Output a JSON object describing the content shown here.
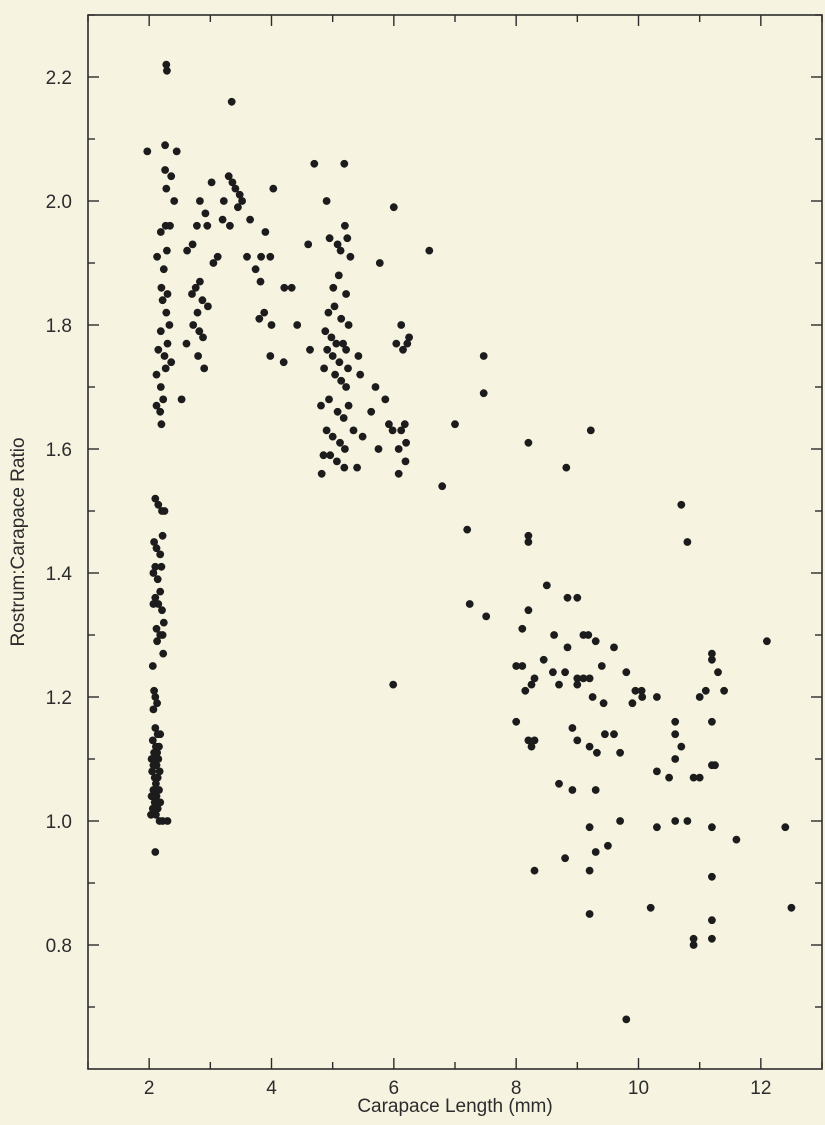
{
  "chart_data": {
    "type": "scatter",
    "title": "",
    "xlabel": "Carapace Length (mm)",
    "ylabel": "Rostrum:Carapace Ratio",
    "xlim": [
      1.0,
      13.0
    ],
    "ylim": [
      0.6,
      2.3
    ],
    "xticks": [
      2,
      4,
      6,
      8,
      10,
      12
    ],
    "xtick_labels": [
      "2",
      "4",
      "6",
      "8",
      "10",
      "12"
    ],
    "yticks": [
      0.8,
      1.0,
      1.2,
      1.4,
      1.6,
      1.8,
      2.0,
      2.2
    ],
    "ytick_labels": [
      "0.8",
      "1.0",
      "1.2",
      "1.4",
      "1.6",
      "1.8",
      "2.0",
      "2.2"
    ],
    "minor_ticks": true,
    "grid": false,
    "legend": "none",
    "colors": {
      "background": "#f7f3e1",
      "axis": "#2c2c2c",
      "points": "#1c1c1c"
    },
    "series": [
      {
        "points": [
          [
            2.28,
            2.22
          ],
          [
            2.29,
            2.21
          ],
          [
            3.35,
            2.16
          ],
          [
            1.97,
            2.08
          ],
          [
            2.26,
            2.09
          ],
          [
            2.45,
            2.08
          ],
          [
            2.26,
            2.05
          ],
          [
            2.36,
            2.04
          ],
          [
            2.28,
            2.02
          ],
          [
            2.41,
            2.0
          ],
          [
            2.19,
            1.95
          ],
          [
            2.27,
            1.96
          ],
          [
            2.34,
            1.96
          ],
          [
            2.13,
            1.91
          ],
          [
            2.29,
            1.92
          ],
          [
            2.24,
            1.89
          ],
          [
            2.2,
            1.86
          ],
          [
            2.3,
            1.85
          ],
          [
            2.22,
            1.84
          ],
          [
            2.28,
            1.82
          ],
          [
            2.33,
            1.8
          ],
          [
            2.19,
            1.79
          ],
          [
            2.3,
            1.77
          ],
          [
            2.15,
            1.76
          ],
          [
            2.36,
            1.74
          ],
          [
            2.25,
            1.75
          ],
          [
            2.27,
            1.73
          ],
          [
            2.12,
            1.72
          ],
          [
            2.19,
            1.7
          ],
          [
            2.23,
            1.68
          ],
          [
            2.12,
            1.67
          ],
          [
            2.18,
            1.66
          ],
          [
            2.53,
            1.68
          ],
          [
            2.2,
            1.64
          ],
          [
            2.62,
            1.92
          ],
          [
            2.71,
            1.93
          ],
          [
            2.78,
            1.96
          ],
          [
            2.83,
            2.0
          ],
          [
            2.92,
            1.98
          ],
          [
            2.95,
            1.96
          ],
          [
            3.02,
            2.03
          ],
          [
            2.7,
            1.85
          ],
          [
            2.76,
            1.86
          ],
          [
            2.83,
            1.87
          ],
          [
            2.87,
            1.84
          ],
          [
            2.79,
            1.82
          ],
          [
            2.72,
            1.8
          ],
          [
            2.82,
            1.79
          ],
          [
            2.88,
            1.78
          ],
          [
            2.61,
            1.77
          ],
          [
            2.8,
            1.75
          ],
          [
            2.9,
            1.73
          ],
          [
            2.96,
            1.83
          ],
          [
            3.05,
            1.9
          ],
          [
            3.12,
            1.91
          ],
          [
            3.2,
            1.97
          ],
          [
            3.22,
            2.0
          ],
          [
            3.3,
            2.04
          ],
          [
            3.36,
            2.03
          ],
          [
            3.41,
            2.02
          ],
          [
            3.48,
            2.01
          ],
          [
            3.32,
            1.96
          ],
          [
            3.45,
            1.99
          ],
          [
            3.52,
            2.0
          ],
          [
            3.65,
            1.97
          ],
          [
            3.6,
            1.91
          ],
          [
            3.82,
            1.87
          ],
          [
            3.83,
            1.91
          ],
          [
            3.9,
            1.95
          ],
          [
            3.74,
            1.89
          ],
          [
            3.8,
            1.81
          ],
          [
            3.88,
            1.82
          ],
          [
            4.03,
            2.02
          ],
          [
            3.98,
            1.91
          ],
          [
            4.0,
            1.8
          ],
          [
            4.21,
            1.86
          ],
          [
            4.33,
            1.86
          ],
          [
            3.98,
            1.75
          ],
          [
            4.2,
            1.74
          ],
          [
            4.42,
            1.8
          ],
          [
            4.6,
            1.93
          ],
          [
            4.63,
            1.76
          ],
          [
            4.7,
            2.06
          ],
          [
            4.9,
            2.0
          ],
          [
            4.95,
            1.94
          ],
          [
            5.08,
            1.93
          ],
          [
            5.13,
            1.92
          ],
          [
            5.2,
            1.96
          ],
          [
            5.24,
            1.94
          ],
          [
            5.01,
            1.86
          ],
          [
            5.1,
            1.88
          ],
          [
            5.22,
            1.85
          ],
          [
            5.29,
            1.91
          ],
          [
            5.19,
            2.06
          ],
          [
            4.93,
            1.82
          ],
          [
            5.03,
            1.83
          ],
          [
            5.14,
            1.81
          ],
          [
            5.26,
            1.8
          ],
          [
            4.88,
            1.79
          ],
          [
            4.98,
            1.78
          ],
          [
            5.06,
            1.77
          ],
          [
            5.17,
            1.77
          ],
          [
            5.22,
            1.76
          ],
          [
            4.91,
            1.76
          ],
          [
            5.0,
            1.75
          ],
          [
            5.11,
            1.74
          ],
          [
            5.25,
            1.73
          ],
          [
            4.86,
            1.73
          ],
          [
            5.04,
            1.72
          ],
          [
            5.14,
            1.71
          ],
          [
            5.22,
            1.7
          ],
          [
            4.94,
            1.68
          ],
          [
            5.08,
            1.66
          ],
          [
            5.18,
            1.65
          ],
          [
            5.26,
            1.67
          ],
          [
            4.81,
            1.67
          ],
          [
            4.9,
            1.63
          ],
          [
            5.0,
            1.62
          ],
          [
            5.12,
            1.61
          ],
          [
            5.2,
            1.6
          ],
          [
            4.85,
            1.59
          ],
          [
            4.96,
            1.59
          ],
          [
            5.07,
            1.58
          ],
          [
            5.19,
            1.57
          ],
          [
            4.82,
            1.56
          ],
          [
            5.34,
            1.63
          ],
          [
            5.42,
            1.75
          ],
          [
            5.45,
            1.72
          ],
          [
            5.4,
            1.57
          ],
          [
            5.49,
            1.62
          ],
          [
            5.63,
            1.66
          ],
          [
            5.7,
            1.7
          ],
          [
            5.77,
            1.9
          ],
          [
            5.75,
            1.6
          ],
          [
            5.86,
            1.68
          ],
          [
            5.92,
            1.64
          ],
          [
            5.98,
            1.63
          ],
          [
            6.0,
            1.99
          ],
          [
            6.04,
            1.77
          ],
          [
            6.12,
            1.8
          ],
          [
            6.15,
            1.76
          ],
          [
            6.22,
            1.77
          ],
          [
            6.25,
            1.78
          ],
          [
            6.08,
            1.6
          ],
          [
            6.12,
            1.63
          ],
          [
            6.18,
            1.64
          ],
          [
            6.2,
            1.61
          ],
          [
            6.08,
            1.56
          ],
          [
            6.19,
            1.58
          ],
          [
            6.58,
            1.92
          ],
          [
            6.79,
            1.54
          ],
          [
            7.0,
            1.64
          ],
          [
            7.47,
            1.75
          ],
          [
            7.47,
            1.69
          ],
          [
            7.2,
            1.47
          ],
          [
            5.99,
            1.22
          ],
          [
            2.1,
            1.52
          ],
          [
            2.15,
            1.51
          ],
          [
            2.21,
            1.5
          ],
          [
            2.25,
            1.5
          ],
          [
            2.08,
            1.45
          ],
          [
            2.12,
            1.44
          ],
          [
            2.18,
            1.43
          ],
          [
            2.22,
            1.46
          ],
          [
            2.1,
            1.41
          ],
          [
            2.2,
            1.41
          ],
          [
            2.07,
            1.4
          ],
          [
            2.14,
            1.39
          ],
          [
            2.18,
            1.37
          ],
          [
            2.1,
            1.36
          ],
          [
            2.07,
            1.35
          ],
          [
            2.15,
            1.35
          ],
          [
            2.21,
            1.34
          ],
          [
            2.24,
            1.32
          ],
          [
            2.12,
            1.31
          ],
          [
            2.18,
            1.3
          ],
          [
            2.22,
            1.3
          ],
          [
            2.13,
            1.29
          ],
          [
            2.23,
            1.27
          ],
          [
            2.06,
            1.25
          ],
          [
            2.08,
            1.21
          ],
          [
            2.1,
            1.2
          ],
          [
            2.13,
            1.19
          ],
          [
            2.07,
            1.18
          ],
          [
            2.1,
            1.15
          ],
          [
            2.14,
            1.14
          ],
          [
            2.18,
            1.14
          ],
          [
            2.06,
            1.13
          ],
          [
            2.11,
            1.12
          ],
          [
            2.16,
            1.12
          ],
          [
            2.08,
            1.11
          ],
          [
            2.13,
            1.11
          ],
          [
            2.04,
            1.1
          ],
          [
            2.1,
            1.1
          ],
          [
            2.15,
            1.1
          ],
          [
            2.07,
            1.09
          ],
          [
            2.12,
            1.09
          ],
          [
            2.17,
            1.08
          ],
          [
            2.05,
            1.08
          ],
          [
            2.09,
            1.07
          ],
          [
            2.14,
            1.07
          ],
          [
            2.11,
            1.06
          ],
          [
            2.16,
            1.05
          ],
          [
            2.07,
            1.05
          ],
          [
            2.12,
            1.04
          ],
          [
            2.04,
            1.04
          ],
          [
            2.18,
            1.03
          ],
          [
            2.09,
            1.03
          ],
          [
            2.14,
            1.02
          ],
          [
            2.06,
            1.02
          ],
          [
            2.11,
            1.01
          ],
          [
            2.03,
            1.01
          ],
          [
            2.17,
            1.0
          ],
          [
            2.22,
            1.0
          ],
          [
            2.3,
            1.0
          ],
          [
            2.1,
            0.95
          ],
          [
            7.24,
            1.35
          ],
          [
            7.51,
            1.33
          ],
          [
            8.2,
            1.61
          ],
          [
            8.82,
            1.57
          ],
          [
            9.22,
            1.63
          ],
          [
            8.2,
            1.46
          ],
          [
            8.2,
            1.45
          ],
          [
            8.5,
            1.38
          ],
          [
            8.84,
            1.36
          ],
          [
            9.0,
            1.36
          ],
          [
            8.1,
            1.31
          ],
          [
            8.2,
            1.34
          ],
          [
            8.62,
            1.3
          ],
          [
            9.1,
            1.3
          ],
          [
            9.18,
            1.3
          ],
          [
            9.3,
            1.29
          ],
          [
            8.84,
            1.28
          ],
          [
            9.4,
            1.25
          ],
          [
            9.6,
            1.28
          ],
          [
            8.0,
            1.25
          ],
          [
            8.1,
            1.25
          ],
          [
            8.3,
            1.23
          ],
          [
            8.45,
            1.26
          ],
          [
            8.6,
            1.24
          ],
          [
            8.8,
            1.24
          ],
          [
            9.0,
            1.23
          ],
          [
            9.1,
            1.23
          ],
          [
            9.2,
            1.23
          ],
          [
            8.15,
            1.21
          ],
          [
            8.25,
            1.22
          ],
          [
            8.7,
            1.22
          ],
          [
            9.0,
            1.22
          ],
          [
            9.25,
            1.2
          ],
          [
            9.43,
            1.19
          ],
          [
            9.9,
            1.19
          ],
          [
            9.95,
            1.21
          ],
          [
            10.05,
            1.21
          ],
          [
            10.06,
            1.2
          ],
          [
            8.0,
            1.16
          ],
          [
            8.2,
            1.13
          ],
          [
            8.25,
            1.12
          ],
          [
            8.3,
            1.13
          ],
          [
            8.92,
            1.15
          ],
          [
            9.0,
            1.13
          ],
          [
            9.2,
            1.12
          ],
          [
            9.32,
            1.11
          ],
          [
            9.45,
            1.14
          ],
          [
            9.6,
            1.14
          ],
          [
            9.7,
            1.11
          ],
          [
            9.8,
            1.24
          ],
          [
            10.3,
            1.2
          ],
          [
            10.6,
            1.16
          ],
          [
            10.6,
            1.14
          ],
          [
            11.0,
            1.2
          ],
          [
            11.1,
            1.21
          ],
          [
            11.2,
            1.26
          ],
          [
            11.2,
            1.27
          ],
          [
            11.3,
            1.24
          ],
          [
            11.4,
            1.21
          ],
          [
            12.1,
            1.29
          ],
          [
            11.2,
            1.16
          ],
          [
            10.7,
            1.12
          ],
          [
            10.6,
            1.1
          ],
          [
            10.3,
            1.08
          ],
          [
            10.5,
            1.07
          ],
          [
            10.9,
            1.07
          ],
          [
            11.0,
            1.07
          ],
          [
            11.2,
            1.09
          ],
          [
            11.25,
            1.09
          ],
          [
            8.7,
            1.06
          ],
          [
            8.92,
            1.05
          ],
          [
            9.3,
            1.05
          ],
          [
            9.2,
            0.99
          ],
          [
            9.7,
            1.0
          ],
          [
            10.6,
            1.0
          ],
          [
            10.8,
            1.0
          ],
          [
            10.3,
            0.99
          ],
          [
            11.2,
            0.99
          ],
          [
            12.4,
            0.99
          ],
          [
            11.6,
            0.97
          ],
          [
            9.3,
            0.95
          ],
          [
            9.5,
            0.96
          ],
          [
            8.8,
            0.94
          ],
          [
            8.3,
            0.92
          ],
          [
            9.2,
            0.92
          ],
          [
            11.2,
            0.91
          ],
          [
            9.2,
            0.85
          ],
          [
            10.2,
            0.86
          ],
          [
            12.5,
            0.86
          ],
          [
            11.2,
            0.84
          ],
          [
            10.9,
            0.81
          ],
          [
            10.9,
            0.8
          ],
          [
            11.2,
            0.81
          ],
          [
            9.8,
            0.68
          ],
          [
            10.7,
            1.51
          ],
          [
            10.8,
            1.45
          ]
        ]
      }
    ]
  }
}
